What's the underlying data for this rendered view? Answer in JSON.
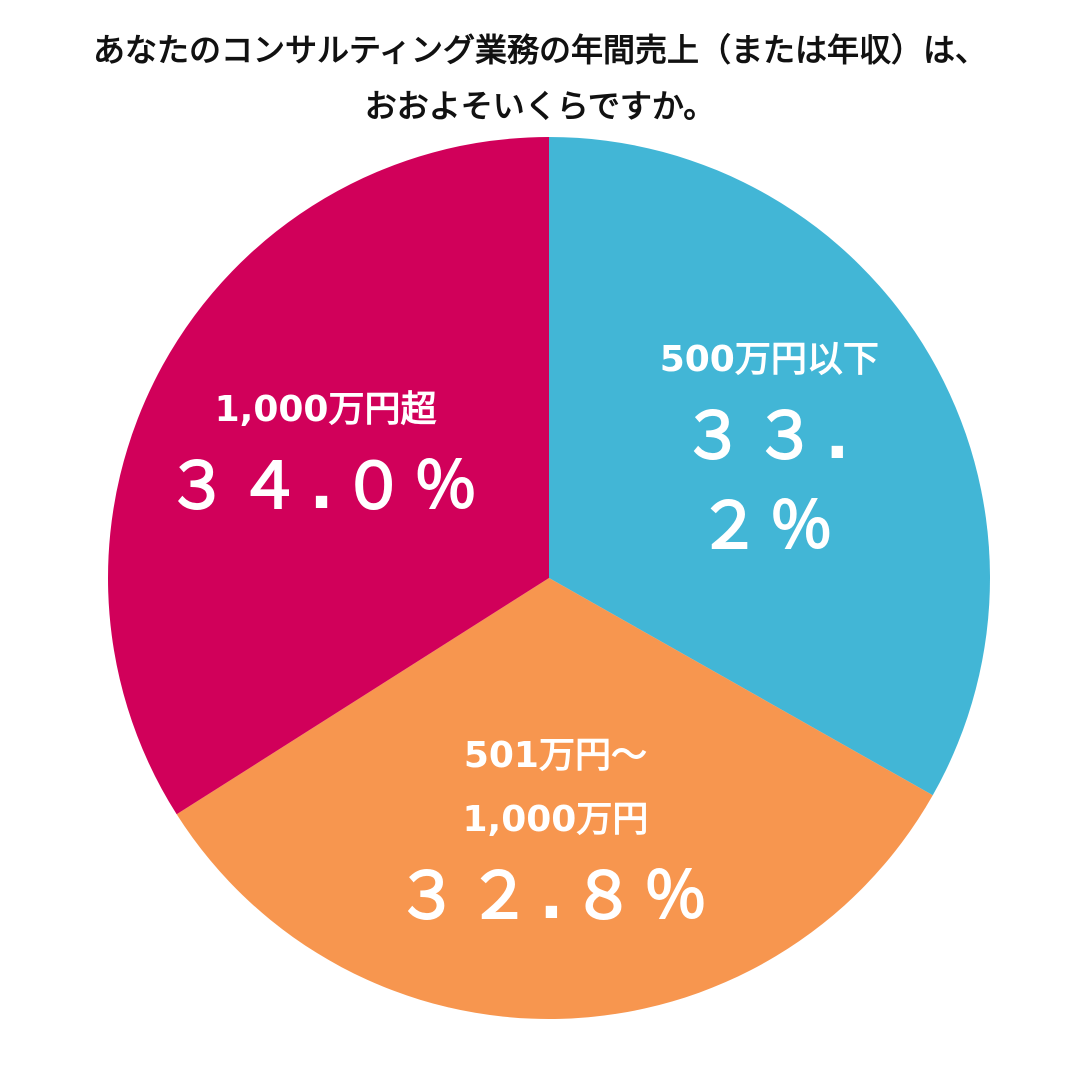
{
  "chart_data": {
    "type": "pie",
    "title": "あなたのコンサルティング業務の年間売上（または年収）は、\nおおよそいくらですか。",
    "categories": [
      "500万円以下",
      "501万円～\n1,000万円",
      "1,000万円超"
    ],
    "values": [
      33.2,
      32.8,
      34.0
    ],
    "value_labels": [
      "３３.２％",
      "３２.８％",
      "３４.０％"
    ],
    "colors": [
      "#42b6d6",
      "#f7964f",
      "#d1005a"
    ]
  }
}
